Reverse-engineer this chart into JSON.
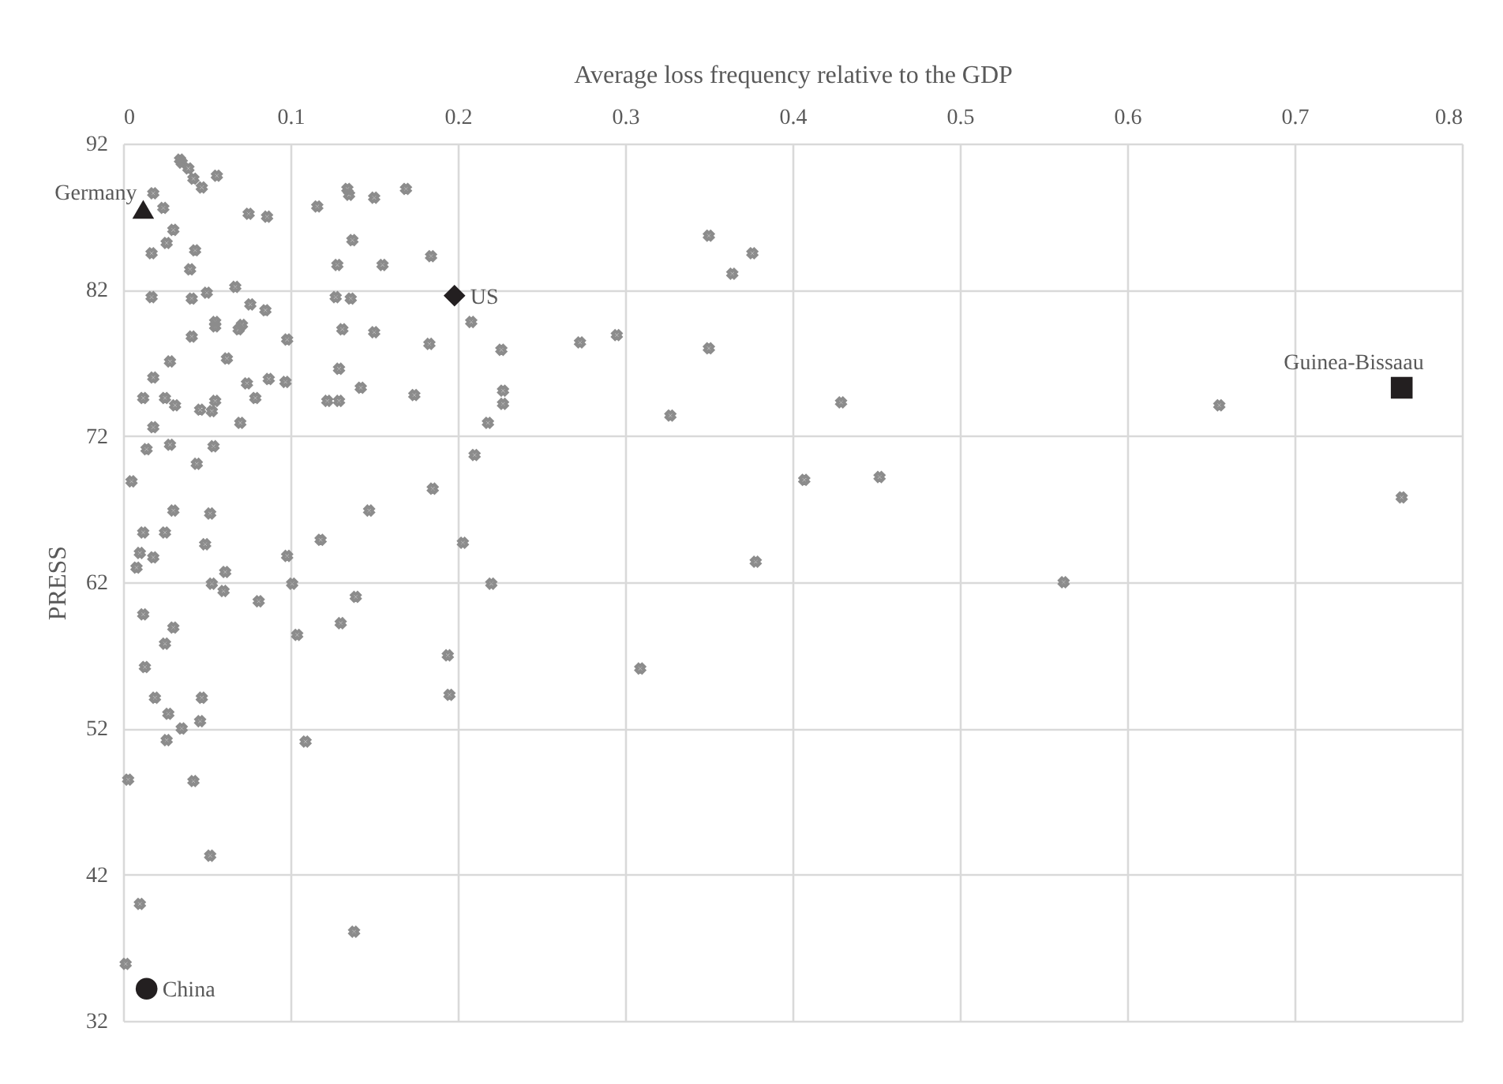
{
  "chart_data": {
    "type": "scatter",
    "xlabel": "Average loss frequency relative to the GDP",
    "ylabel": "PRESS",
    "xlim": [
      0,
      0.8
    ],
    "xticks": [
      0,
      0.1,
      0.2,
      0.3,
      0.4,
      0.5,
      0.6,
      0.7,
      0.8
    ],
    "ylim": [
      32,
      92
    ],
    "yticks": [
      32,
      42,
      52,
      62,
      72,
      82,
      92
    ],
    "grid": true,
    "series": [
      {
        "color": "#8c8c8c",
        "marker": "cross",
        "x": [
          0.034,
          0.035,
          0.039,
          0.042,
          0.047,
          0.056,
          0.018,
          0.024,
          0.075,
          0.086,
          0.03,
          0.026,
          0.017,
          0.043,
          0.04,
          0.017,
          0.041,
          0.05,
          0.067,
          0.076,
          0.085,
          0.116,
          0.134,
          0.135,
          0.15,
          0.169,
          0.137,
          0.128,
          0.155,
          0.127,
          0.136,
          0.184,
          0.055,
          0.055,
          0.041,
          0.071,
          0.069,
          0.098,
          0.028,
          0.062,
          0.018,
          0.074,
          0.087,
          0.097,
          0.012,
          0.025,
          0.031,
          0.055,
          0.046,
          0.053,
          0.079,
          0.07,
          0.018,
          0.014,
          0.028,
          0.054,
          0.044,
          0.005,
          0.03,
          0.052,
          0.012,
          0.025,
          0.049,
          0.01,
          0.018,
          0.008,
          0.061,
          0.053,
          0.06,
          0.098,
          0.101,
          0.118,
          0.081,
          0.147,
          0.139,
          0.13,
          0.104,
          0.012,
          0.03,
          0.025,
          0.131,
          0.15,
          0.129,
          0.142,
          0.122,
          0.129,
          0.013,
          0.019,
          0.047,
          0.027,
          0.046,
          0.035,
          0.026,
          0.109,
          0.003,
          0.042,
          0.052,
          0.01,
          0.138,
          0.0015,
          0.208,
          0.183,
          0.226,
          0.273,
          0.295,
          0.174,
          0.227,
          0.227,
          0.218,
          0.327,
          0.21,
          0.185,
          0.203,
          0.22,
          0.194,
          0.195,
          0.309,
          0.35,
          0.376,
          0.364,
          0.35,
          0.429,
          0.407,
          0.452,
          0.378,
          0.562,
          0.655,
          0.764
        ],
        "values": [
          90.9,
          90.7,
          90.3,
          89.6,
          89.0,
          89.8,
          88.6,
          87.6,
          87.2,
          87.0,
          86.1,
          85.2,
          84.5,
          84.7,
          83.4,
          81.5,
          81.4,
          81.8,
          82.2,
          81.0,
          80.6,
          87.7,
          88.9,
          88.5,
          88.3,
          88.9,
          85.4,
          83.7,
          83.7,
          81.5,
          81.4,
          84.3,
          79.8,
          79.5,
          78.8,
          79.6,
          79.3,
          78.6,
          77.1,
          77.3,
          76.0,
          75.6,
          75.9,
          75.7,
          74.6,
          74.6,
          74.1,
          74.4,
          73.8,
          73.7,
          74.6,
          72.9,
          72.6,
          71.1,
          71.4,
          71.3,
          70.1,
          68.9,
          66.9,
          66.7,
          65.4,
          65.4,
          64.6,
          64.0,
          63.7,
          63.0,
          62.7,
          61.9,
          61.4,
          63.8,
          61.9,
          64.9,
          60.7,
          66.9,
          61.0,
          59.2,
          58.4,
          59.8,
          58.9,
          57.8,
          79.3,
          79.1,
          76.6,
          75.3,
          74.4,
          74.4,
          56.2,
          54.1,
          54.1,
          53.0,
          52.5,
          52.0,
          51.2,
          51.1,
          48.5,
          48.4,
          43.3,
          40.0,
          38.1,
          35.9,
          79.8,
          78.3,
          77.9,
          78.4,
          78.9,
          74.8,
          75.1,
          74.2,
          72.9,
          73.4,
          70.7,
          68.4,
          64.7,
          61.9,
          57.0,
          54.3,
          56.1,
          85.7,
          84.5,
          83.1,
          78.0,
          74.3,
          69.0,
          69.2,
          63.4,
          62.0,
          74.1,
          67.8
        ]
      },
      {
        "name": "Germany",
        "color": "#231f20",
        "marker": "triangle",
        "x": [
          0.012
        ],
        "values": [
          87.5
        ]
      },
      {
        "name": "US",
        "color": "#231f20",
        "marker": "diamond",
        "x": [
          0.198
        ],
        "values": [
          81.6
        ]
      },
      {
        "name": "Guinea-Bissaau",
        "color": "#231f20",
        "marker": "square",
        "x": [
          0.764
        ],
        "values": [
          75.3
        ]
      },
      {
        "name": "China",
        "color": "#231f20",
        "marker": "circle",
        "x": [
          0.014
        ],
        "values": [
          34.2
        ]
      }
    ]
  }
}
